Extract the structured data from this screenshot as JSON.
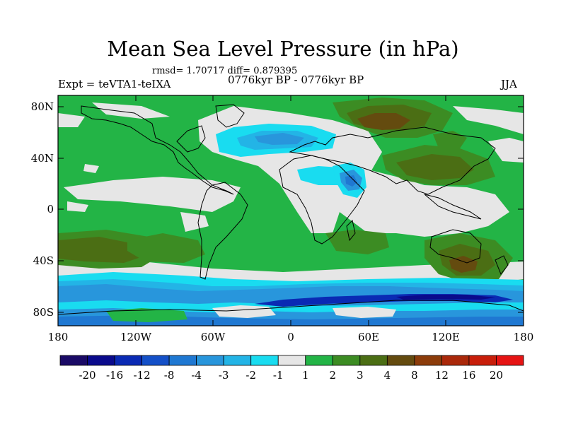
{
  "title": "Mean Sea Level Pressure (in hPa)",
  "stats": "rmsd= 1.70717 diff= 0.879395",
  "left_label": "Expt = teVTA1-teIXA",
  "center_label": "0776kyr BP - 0776kyr BP",
  "right_label": "JJA",
  "lat_ticks": [
    "80N",
    "40N",
    "0",
    "40S",
    "80S"
  ],
  "lon_ticks": [
    "180",
    "120W",
    "60W",
    "0",
    "60E",
    "120E",
    "180"
  ],
  "colorbar": {
    "labels": [
      "-20",
      "-16",
      "-12",
      "-8",
      "-4",
      "-3",
      "-2",
      "-1",
      "1",
      "2",
      "3",
      "4",
      "8",
      "12",
      "16",
      "20"
    ],
    "colors": [
      "#1a0a66",
      "#0a0a8c",
      "#0a2ab4",
      "#1450c8",
      "#1f78d2",
      "#2896dc",
      "#23b4e6",
      "#19dcf0",
      "#e6e6e6",
      "#23b446",
      "#3c8c23",
      "#4b6e14",
      "#644b0f",
      "#8c3c0a",
      "#aa280a",
      "#c81e0a",
      "#e61414"
    ]
  }
}
